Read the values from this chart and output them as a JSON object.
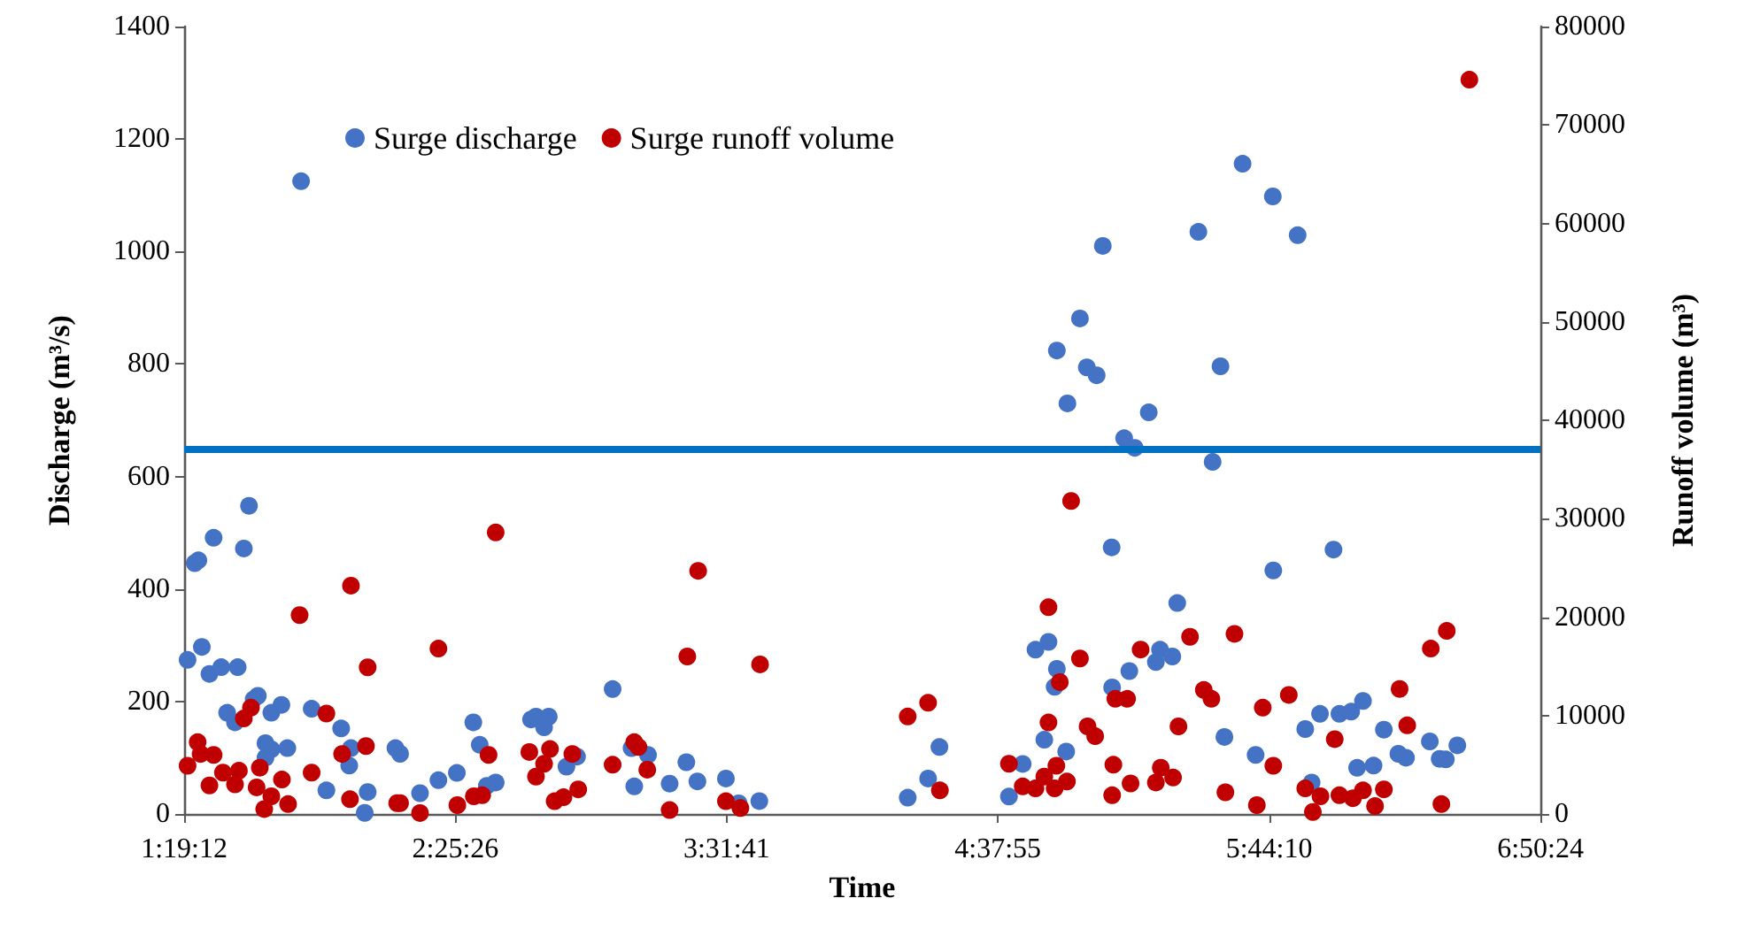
{
  "chart_data": {
    "type": "scatter",
    "xlabel": "Time",
    "ylabel": "Discharge (m³/s)",
    "y2label": "Runoff volume (m³)",
    "xlim": [
      1.32,
      6.84
    ],
    "xticks": [
      {
        "value": 1.32,
        "label": "1:19:12"
      },
      {
        "value": 2.424,
        "label": "2:25:26"
      },
      {
        "value": 3.528,
        "label": "3:31:41"
      },
      {
        "value": 4.632,
        "label": "4:37:55"
      },
      {
        "value": 5.736,
        "label": "5:44:10"
      },
      {
        "value": 6.84,
        "label": "6:50:24"
      }
    ],
    "ylim": [
      0,
      1400
    ],
    "yticks": [
      0,
      200,
      400,
      600,
      800,
      1000,
      1200,
      1400
    ],
    "y2lim": [
      0,
      80000
    ],
    "y2ticks": [
      0,
      10000,
      20000,
      30000,
      40000,
      50000,
      60000,
      70000,
      80000
    ],
    "legend": "top left",
    "marker": "circle",
    "grid": false,
    "ref_lines": [
      {
        "axis": "y",
        "value": 650,
        "color": "#0070c0"
      }
    ],
    "series": [
      {
        "name": "Surge discharge",
        "color": "#4472c4",
        "x": [
          1.796,
          5.059,
          4.966,
          4.872,
          4.994,
          5.034,
          4.915,
          5.246,
          5.146,
          5.189,
          5.448,
          5.628,
          5.751,
          5.852,
          5.538,
          5.506,
          1.584,
          1.44,
          1.563,
          1.363,
          1.378,
          1.334,
          1.392,
          1.423,
          1.471,
          1.538,
          1.62,
          1.603,
          1.495,
          1.527,
          1.675,
          1.716,
          1.839,
          1.651,
          1.675,
          1.74,
          1.651,
          1.959,
          1.999,
          1.992,
          1.899,
          2.055,
          2.067,
          2.18,
          2.199,
          2.28,
          2.355,
          2.43,
          2.497,
          2.523,
          2.552,
          2.588,
          2.732,
          2.752,
          2.804,
          2.785,
          2.876,
          2.919,
          3.064,
          3.152,
          3.141,
          3.208,
          3.296,
          3.364,
          3.409,
          3.525,
          3.577,
          3.661,
          4.265,
          4.348,
          4.394,
          4.677,
          4.733,
          4.785,
          4.838,
          4.872,
          4.863,
          4.821,
          4.91,
          5.095,
          5.097,
          5.167,
          5.275,
          5.292,
          5.342,
          5.362,
          5.554,
          5.681,
          5.753,
          5.883,
          5.909,
          5.943,
          5.998,
          6.022,
          6.07,
          6.118,
          6.094,
          6.161,
          6.203,
          6.262,
          6.293,
          6.39,
          6.43,
          6.455,
          6.502
        ],
        "values": [
          1125,
          1010,
          881,
          824,
          794,
          780,
          730,
          714,
          668,
          651,
          1035,
          1156,
          1098,
          1029,
          796,
          626,
          548,
          491,
          472,
          446,
          451,
          274,
          297,
          249,
          261,
          261,
          210,
          204,
          180,
          163,
          180,
          194,
          187,
          126,
          115,
          117,
          100,
          152,
          117,
          86,
          42,
          2,
          39,
          117,
          107,
          37,
          60,
          73,
          163,
          123,
          50,
          56,
          168,
          173,
          173,
          154,
          84,
          102,
          222,
          49,
          117,
          105,
          54,
          92,
          58,
          63,
          19,
          23,
          29,
          63,
          119,
          31,
          89,
          292,
          306,
          258,
          226,
          132,
          111,
          474,
          225,
          254,
          270,
          292,
          280,
          375,
          137,
          105,
          433,
          151,
          56,
          178,
          470,
          178,
          182,
          201,
          82,
          86,
          150,
          107,
          100,
          129,
          98,
          97,
          122
        ]
      },
      {
        "name": "Surge runoff volume",
        "color": "#c00000",
        "axis": "y2",
        "x": [
          1.334,
          1.375,
          1.387,
          1.44,
          1.423,
          1.478,
          1.527,
          1.543,
          1.563,
          1.592,
          1.628,
          1.615,
          1.646,
          1.675,
          1.718,
          1.743,
          1.79,
          1.839,
          1.899,
          1.963,
          1.999,
          1.995,
          2.067,
          2.06,
          2.187,
          2.199,
          2.28,
          2.355,
          2.432,
          2.499,
          2.533,
          2.559,
          2.588,
          2.725,
          2.752,
          2.785,
          2.809,
          2.828,
          2.864,
          2.9,
          2.924,
          3.064,
          3.152,
          3.169,
          3.205,
          3.296,
          3.412,
          3.368,
          3.664,
          3.525,
          3.584,
          4.265,
          4.348,
          4.396,
          4.677,
          4.733,
          4.785,
          4.821,
          4.87,
          4.913,
          4.863,
          4.838,
          4.884,
          4.838,
          4.93,
          4.966,
          4.997,
          5.028,
          5.097,
          5.102,
          5.11,
          5.158,
          5.172,
          5.213,
          5.275,
          5.295,
          5.345,
          5.367,
          5.414,
          5.47,
          5.501,
          5.558,
          5.595,
          5.686,
          5.71,
          5.753,
          5.816,
          5.883,
          5.914,
          5.945,
          6.003,
          6.022,
          6.077,
          6.118,
          6.167,
          6.203,
          6.267,
          6.298,
          6.394,
          6.459,
          6.437,
          6.551
        ],
        "values": [
          4900,
          7300,
          6100,
          6000,
          2900,
          4200,
          3000,
          4400,
          9700,
          10800,
          4700,
          2700,
          500,
          1800,
          3500,
          1000,
          20200,
          4200,
          10200,
          6100,
          23200,
          1500,
          14900,
          6900,
          1100,
          1100,
          100,
          16800,
          900,
          1800,
          1900,
          6000,
          28600,
          6300,
          3800,
          5100,
          6600,
          1300,
          1700,
          6100,
          2500,
          5000,
          7300,
          6800,
          4500,
          400,
          24700,
          16000,
          15200,
          1300,
          600,
          9900,
          11300,
          2400,
          5100,
          2800,
          2600,
          3800,
          4900,
          3300,
          2600,
          9300,
          13400,
          21000,
          31800,
          15800,
          8900,
          7900,
          1900,
          5000,
          11700,
          11700,
          3100,
          16700,
          3200,
          4700,
          3700,
          8900,
          18000,
          12600,
          11700,
          2200,
          18300,
          900,
          10800,
          4900,
          12100,
          2600,
          200,
          1800,
          7600,
          1900,
          1600,
          2400,
          800,
          2500,
          12700,
          9000,
          16800,
          18600,
          1000,
          74600
        ]
      }
    ]
  }
}
